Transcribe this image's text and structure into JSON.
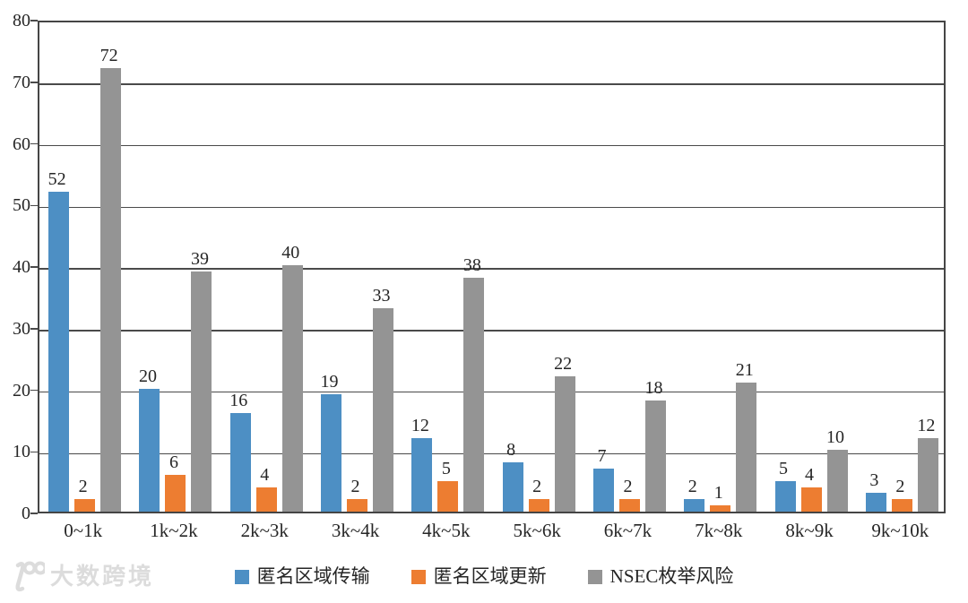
{
  "chart_data": {
    "type": "bar",
    "title": "",
    "xlabel": "",
    "ylabel": "",
    "categories": [
      "0~1k",
      "1k~2k",
      "2k~3k",
      "3k~4k",
      "4k~5k",
      "5k~6k",
      "6k~7k",
      "7k~8k",
      "8k~9k",
      "9k~10k"
    ],
    "series": [
      {
        "name": "匿名区域传输",
        "color": "#4D8FC4",
        "values": [
          52,
          20,
          16,
          19,
          12,
          8,
          7,
          2,
          5,
          3
        ]
      },
      {
        "name": "匿名区域更新",
        "color": "#ED7D31",
        "values": [
          2,
          6,
          4,
          2,
          5,
          2,
          2,
          1,
          4,
          2
        ]
      },
      {
        "name": "NSEC枚举风险",
        "color": "#949494",
        "values": [
          72,
          39,
          40,
          33,
          38,
          22,
          18,
          21,
          10,
          12
        ]
      }
    ],
    "ylim": [
      0,
      80
    ],
    "yticks": [
      0,
      10,
      20,
      30,
      40,
      50,
      60,
      70,
      80
    ],
    "grid": true,
    "legend_position": "bottom",
    "value_labels": true
  },
  "watermark": {
    "logo": "100-logo",
    "text": "大数跨境"
  },
  "style": {
    "grid_color": "#4a4a4a",
    "text_color": "#262626",
    "watermark_color": "#dcdcdc"
  }
}
